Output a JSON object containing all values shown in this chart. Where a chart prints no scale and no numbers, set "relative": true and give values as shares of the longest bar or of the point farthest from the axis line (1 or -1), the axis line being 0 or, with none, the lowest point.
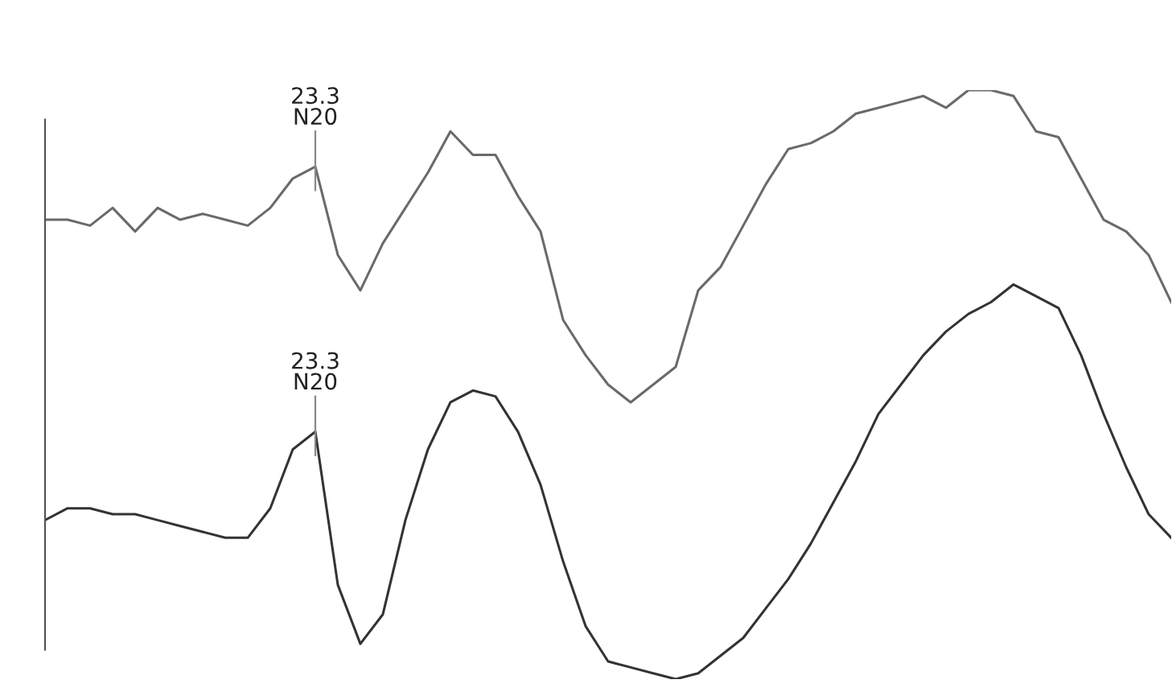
{
  "chart_data": {
    "type": "line",
    "relative": true,
    "line_style": "solid",
    "categories": [
      null,
      null,
      null,
      null,
      null,
      null,
      null,
      null,
      null,
      null,
      null,
      null,
      null,
      null,
      null,
      null,
      null,
      null,
      null,
      null,
      null,
      null,
      null,
      null,
      null,
      null,
      null,
      null,
      null,
      null,
      null,
      null,
      null,
      null,
      null,
      null,
      null,
      null,
      null,
      null,
      null,
      null,
      null,
      null,
      null,
      null,
      null,
      null,
      null,
      null,
      null
    ],
    "series": [
      {
        "color": "#6a6a6a",
        "values": [
          0.78,
          0.78,
          0.77,
          0.8,
          0.76,
          0.8,
          0.78,
          0.79,
          0.78,
          0.77,
          0.8,
          0.85,
          0.87,
          0.72,
          0.66,
          0.74,
          0.8,
          0.86,
          0.93,
          0.89,
          0.89,
          0.82,
          0.76,
          0.61,
          0.55,
          0.5,
          0.47,
          0.5,
          0.53,
          0.66,
          0.7,
          0.77,
          0.84,
          0.9,
          0.91,
          0.93,
          0.96,
          0.97,
          0.98,
          0.99,
          0.97,
          1,
          1,
          0.99,
          0.93,
          0.92,
          0.85,
          0.78,
          0.76,
          0.72,
          0.64
        ]
      },
      {
        "color": "#333333",
        "values": [
          0.27,
          0.29,
          0.29,
          0.28,
          0.28,
          0.27,
          0.26,
          0.25,
          0.24,
          0.24,
          0.29,
          0.39,
          0.42,
          0.16,
          0.06,
          0.11,
          0.27,
          0.39,
          0.47,
          0.49,
          0.48,
          0.42,
          0.33,
          0.2,
          0.09,
          0.03,
          0.02,
          0.01,
          0,
          0.01,
          0.04,
          0.07,
          0.12,
          0.17,
          0.23,
          0.3,
          0.37,
          0.45,
          0.5,
          0.55,
          0.59,
          0.62,
          0.64,
          0.67,
          0.65,
          0.63,
          0.55,
          0.45,
          0.36,
          0.28,
          0.24
        ]
      }
    ],
    "annotations": [
      {
        "text": "23.3\nN20",
        "y": 0.87
      },
      {
        "text": "23.3\nN20",
        "y": 0.42
      }
    ]
  }
}
